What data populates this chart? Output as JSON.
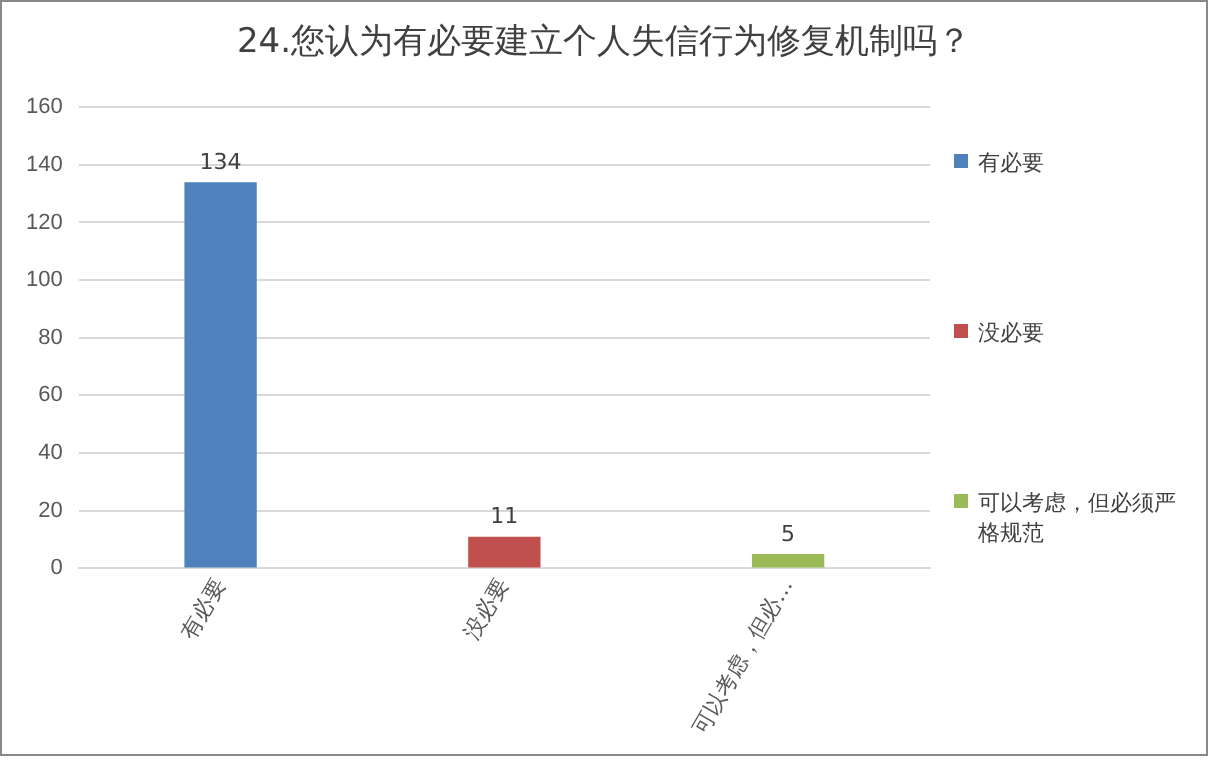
{
  "chart_data": {
    "type": "bar",
    "title": "24.您认为有必要建立个人失信行为修复机制吗？",
    "categories": [
      "有必要",
      "没必要",
      "可以考虑，但必…"
    ],
    "series": [
      {
        "name": "有必要",
        "color": "#4f81bd",
        "values": [
          134,
          null,
          null
        ]
      },
      {
        "name": "没必要",
        "color": "#c0504d",
        "values": [
          null,
          11,
          null
        ]
      },
      {
        "name": "可以考虑，但必须严格规范",
        "color": "#9bbb59",
        "values": [
          null,
          null,
          5
        ]
      }
    ],
    "ylim": [
      0,
      160
    ],
    "yticks": [
      0,
      20,
      40,
      60,
      80,
      100,
      120,
      140,
      160
    ],
    "grid": "y",
    "legend": "right",
    "data_labels": true
  }
}
